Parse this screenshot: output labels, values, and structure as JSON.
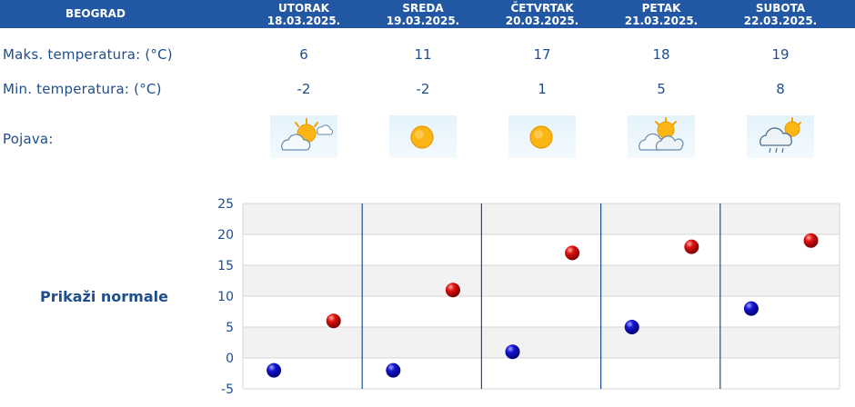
{
  "header": {
    "city": "BEOGRAD",
    "days": [
      {
        "name": "UTORAK",
        "date": "18.03.2025."
      },
      {
        "name": "SREDA",
        "date": "19.03.2025."
      },
      {
        "name": "ČETVRTAK",
        "date": "20.03.2025."
      },
      {
        "name": "PETAK",
        "date": "21.03.2025."
      },
      {
        "name": "SUBOTA",
        "date": "22.03.2025."
      }
    ]
  },
  "rows": {
    "max_label": "Maks. temperatura: (°C)",
    "min_label": "Min. temperatura: (°C)",
    "phen_label": "Pojava:",
    "max_values": [
      "6",
      "11",
      "17",
      "18",
      "19"
    ],
    "min_values": [
      "-2",
      "-2",
      "1",
      "5",
      "8"
    ],
    "icons": [
      "partly-cloudy-sun-icon",
      "sun-icon",
      "sun-icon",
      "clouds-sun-icon",
      "cloud-rain-sun-icon"
    ]
  },
  "normals_link": "Prikaži normale",
  "colors": {
    "header_bg": "#2257a3",
    "text": "#1e4e8c",
    "max_marker": "#cc0000",
    "min_marker": "#0000b4",
    "band": "#f2f2f2",
    "grid": "#d4d4d4",
    "divider": "#1e4e8c"
  },
  "chart_data": {
    "type": "scatter",
    "categories": [
      "18.03.2025.",
      "19.03.2025.",
      "20.03.2025.",
      "21.03.2025.",
      "22.03.2025."
    ],
    "series": [
      {
        "name": "Min. temperatura",
        "values": [
          -2,
          -2,
          1,
          5,
          8
        ]
      },
      {
        "name": "Maks. temperatura",
        "values": [
          6,
          11,
          17,
          18,
          19
        ]
      }
    ],
    "yticks": [
      -5,
      0,
      5,
      10,
      15,
      20,
      25
    ],
    "ylim": [
      -5,
      25
    ],
    "title": "",
    "xlabel": "",
    "ylabel": ""
  }
}
